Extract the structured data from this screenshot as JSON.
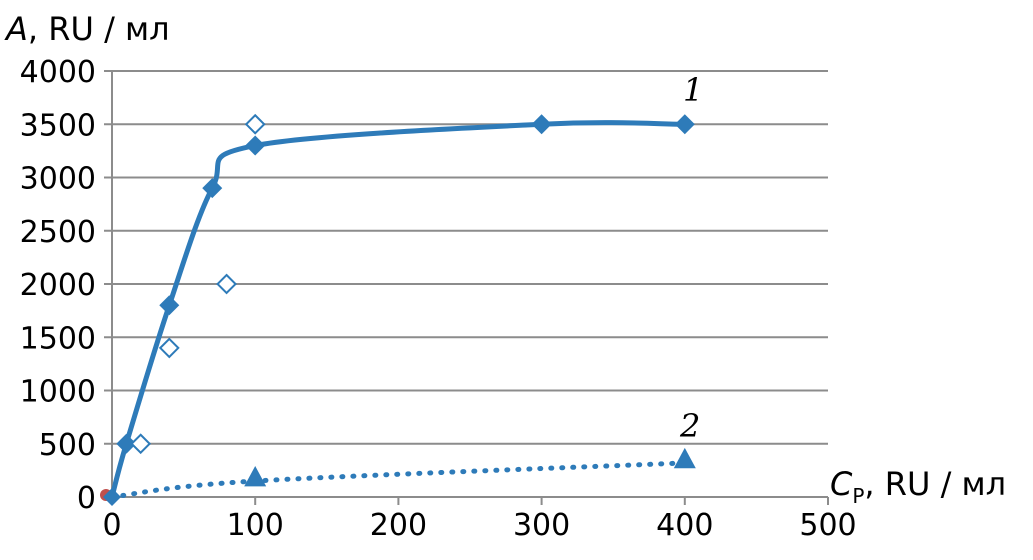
{
  "chart_data": {
    "type": "line",
    "ylabel": {
      "symbol": "A",
      "unit": ", RU / мл"
    },
    "xlabel": {
      "symbol": "C",
      "subscript": "P",
      "unit": ", RU / мл"
    },
    "xlim": [
      0,
      500
    ],
    "ylim": [
      0,
      4000
    ],
    "x_ticks": [
      "0",
      "100",
      "200",
      "300",
      "400",
      "500"
    ],
    "y_ticks": [
      "0",
      "500",
      "1000",
      "1500",
      "2000",
      "2500",
      "3000",
      "3500",
      "4000"
    ],
    "grid": "horizontal",
    "series": [
      {
        "name": "1",
        "style": "solid line with filled diamond markers",
        "color": "#2e7bb9",
        "points": [
          [
            0,
            0
          ],
          [
            10,
            500
          ],
          [
            40,
            1800
          ],
          [
            70,
            2900
          ],
          [
            100,
            3300
          ],
          [
            300,
            3500
          ],
          [
            400,
            3500
          ]
        ]
      },
      {
        "style": "open diamond markers",
        "color": "#2e7bb9",
        "points": [
          [
            0,
            0
          ],
          [
            20,
            500
          ],
          [
            40,
            1400
          ],
          [
            80,
            2000
          ],
          [
            100,
            3500
          ]
        ]
      },
      {
        "name": "2",
        "style": "dotted line with filled triangle markers",
        "color": "#2e7bb9",
        "points": [
          [
            0,
            0
          ],
          [
            100,
            150
          ],
          [
            400,
            320
          ]
        ]
      }
    ],
    "curve_labels": [
      "1",
      "2"
    ],
    "origin_marker_color": "#c0504d"
  }
}
